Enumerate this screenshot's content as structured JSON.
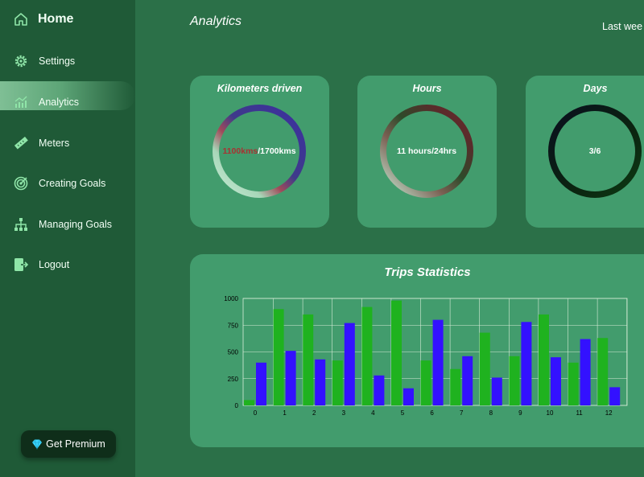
{
  "sidebar": {
    "items": [
      {
        "label": "Home",
        "icon": "home-icon"
      },
      {
        "label": "Settings",
        "icon": "gear-icon"
      },
      {
        "label": "Analytics",
        "icon": "analytics-icon"
      },
      {
        "label": "Meters",
        "icon": "ruler-icon"
      },
      {
        "label": "Creating Goals",
        "icon": "target-icon"
      },
      {
        "label": "Managing Goals",
        "icon": "hierarchy-icon"
      },
      {
        "label": "Logout",
        "icon": "logout-icon"
      }
    ],
    "premium_label": "Get Premium"
  },
  "header": {
    "title": "Analytics",
    "range": "Last wee"
  },
  "stats": [
    {
      "title": "Kilometers driven",
      "value_highlight": "1100kms",
      "value_rest": "/1700kms"
    },
    {
      "title": "Hours",
      "value_highlight": "",
      "value_rest": "11 hours/24hrs"
    },
    {
      "title": "Days",
      "value_highlight": "",
      "value_rest": "3/6"
    }
  ],
  "chart_title": "Trips Statistics",
  "colors": {
    "accent_green": "#1fb21f",
    "accent_blue": "#3311ff",
    "highlight_red": "#a83232"
  },
  "chart_data": {
    "type": "bar",
    "title": "Trips Statistics",
    "categories": [
      "0",
      "1",
      "2",
      "3",
      "4",
      "5",
      "6",
      "7",
      "8",
      "9",
      "10",
      "11",
      "12"
    ],
    "series": [
      {
        "values": [
          50,
          900,
          850,
          420,
          920,
          980,
          420,
          340,
          680,
          460,
          850,
          400,
          630
        ]
      },
      {
        "values": [
          400,
          510,
          430,
          770,
          280,
          160,
          800,
          460,
          260,
          780,
          450,
          620,
          170
        ]
      }
    ],
    "ylim": [
      0,
      1000
    ],
    "yticks": [
      "0",
      "250",
      "500",
      "750",
      "1000"
    ],
    "grid": true
  }
}
